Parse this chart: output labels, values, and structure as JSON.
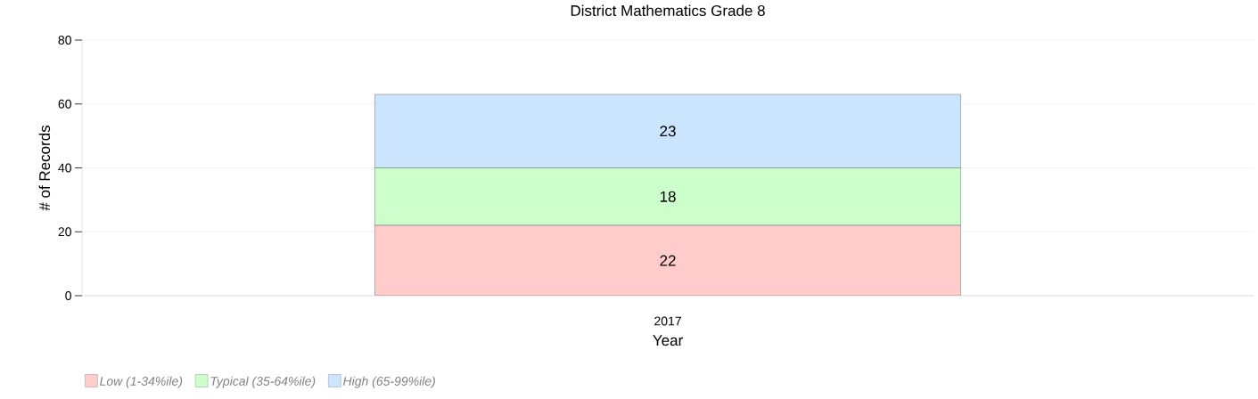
{
  "chart_data": {
    "type": "bar",
    "stacked": true,
    "title": "District Mathematics Grade 8",
    "xlabel": "Year",
    "ylabel": "# of Records",
    "categories": [
      "2017"
    ],
    "series": [
      {
        "name": "Low (1-34%ile)",
        "color": "#ffcccc",
        "values": [
          22
        ]
      },
      {
        "name": "Typical (35-64%ile)",
        "color": "#ccffcc",
        "values": [
          18
        ]
      },
      {
        "name": "High (65-99%ile)",
        "color": "#cce5ff",
        "values": [
          23
        ]
      }
    ],
    "ylim": [
      0,
      80
    ],
    "yticks": [
      0,
      20,
      40,
      60,
      80
    ],
    "grid": "y",
    "legend": "bottom left",
    "data_labels": true
  }
}
